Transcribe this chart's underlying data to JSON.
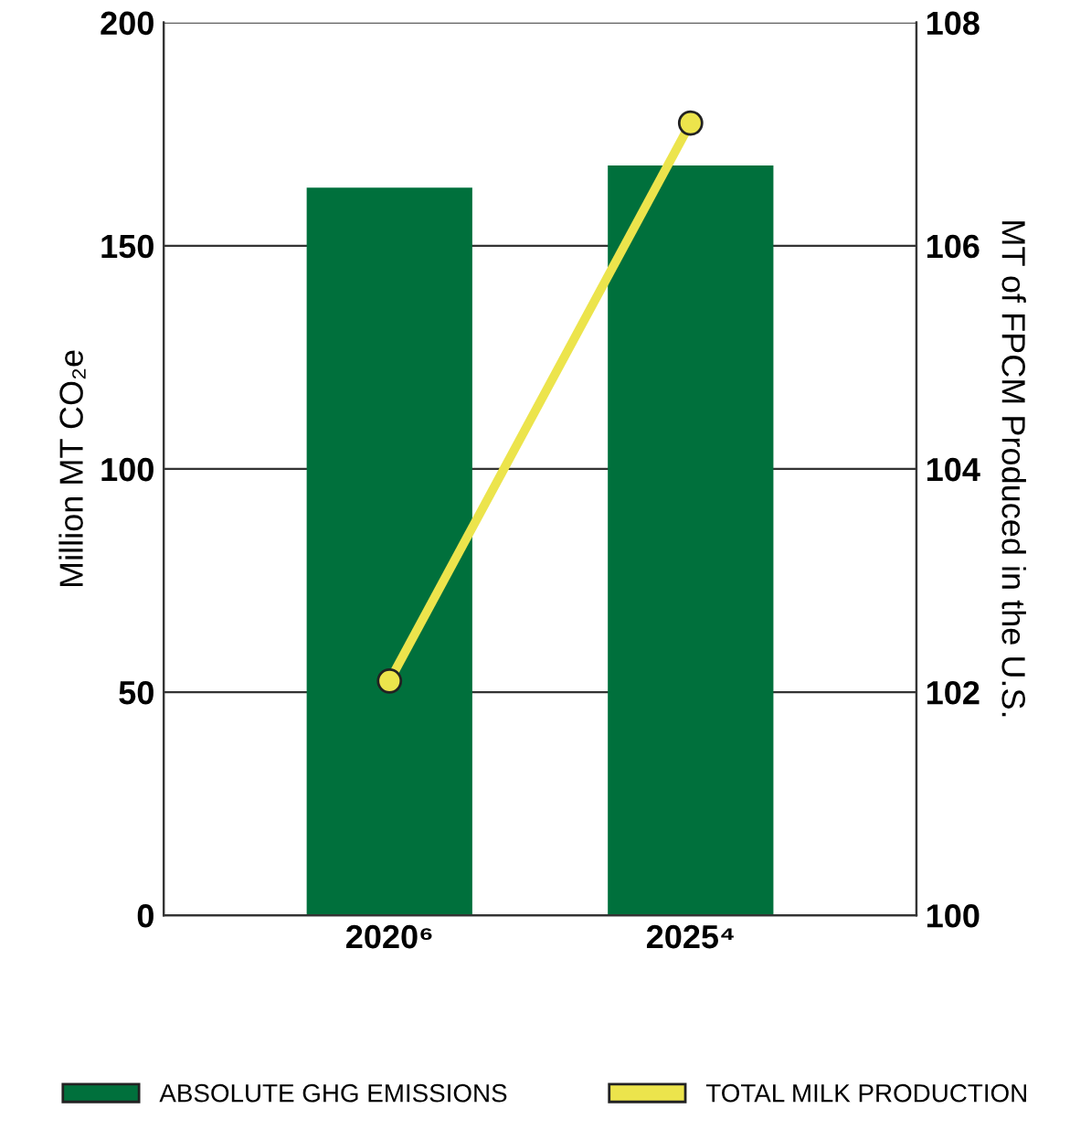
{
  "chart_data": {
    "type": "bar",
    "categories": [
      "2020⁶",
      "2025⁴"
    ],
    "ylabel": "Million MT CO₂e",
    "y2label": "MT of FPCM Produced in the U.S.",
    "series": [
      {
        "name": "ABSOLUTE GHG EMISSIONS",
        "color": "#00703c",
        "values": [
          163,
          168
        ]
      },
      {
        "name": "TOTAL MILK PRODUCTION",
        "type": "line",
        "axis": "y2",
        "color": "#ece44c",
        "marker": "circle",
        "values": [
          102.1,
          107.1
        ]
      }
    ],
    "ylim": [
      0,
      200
    ],
    "yticks": [
      0,
      50,
      100,
      150,
      200
    ],
    "y2lim": [
      100,
      108
    ],
    "y2ticks": [
      100,
      102,
      104,
      106,
      108
    ],
    "grid": "y",
    "legend": "bottom"
  }
}
